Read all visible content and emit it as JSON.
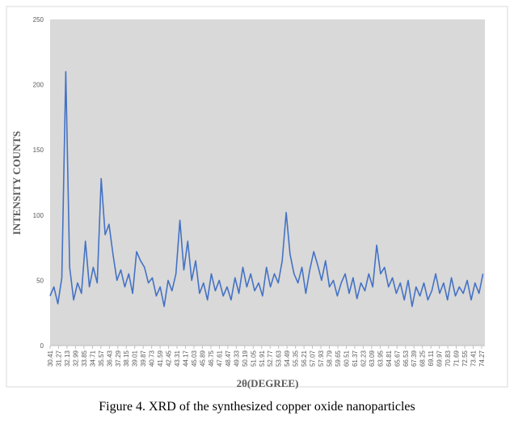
{
  "chart_data": {
    "type": "line",
    "caption": "Figure 4. XRD of the synthesized copper oxide nanoparticles",
    "xlabel": "2θ(DEGREE)",
    "ylabel": "INTENSITY COUNTS",
    "color": "#4472c4",
    "grid": false,
    "xlim": [
      30.41,
      74.6
    ],
    "ylim": [
      0,
      250
    ],
    "yticks": [
      0,
      50,
      100,
      150,
      200,
      250
    ],
    "xticks": [
      30.41,
      31.27,
      32.13,
      32.99,
      33.85,
      34.71,
      35.57,
      36.43,
      37.29,
      38.15,
      39.01,
      39.87,
      40.73,
      41.59,
      42.45,
      43.31,
      44.17,
      45.03,
      45.89,
      46.75,
      47.61,
      48.47,
      49.33,
      50.19,
      51.05,
      51.91,
      52.77,
      53.63,
      54.49,
      55.35,
      56.21,
      57.07,
      57.93,
      58.79,
      59.65,
      60.51,
      61.37,
      62.23,
      63.09,
      63.95,
      64.81,
      65.67,
      66.53,
      67.39,
      68.25,
      69.11,
      69.97,
      70.83,
      71.69,
      72.55,
      73.41,
      74.27
    ],
    "x": [
      30.4,
      30.8,
      31.2,
      31.6,
      32.0,
      32.4,
      32.8,
      33.2,
      33.6,
      34.0,
      34.4,
      34.8,
      35.2,
      35.6,
      36.0,
      36.4,
      36.8,
      37.2,
      37.6,
      38.0,
      38.4,
      38.8,
      39.2,
      39.6,
      40.0,
      40.4,
      40.8,
      41.2,
      41.6,
      42.0,
      42.4,
      42.8,
      43.2,
      43.6,
      44.0,
      44.4,
      44.8,
      45.2,
      45.6,
      46.0,
      46.4,
      46.8,
      47.2,
      47.6,
      48.0,
      48.4,
      48.8,
      49.2,
      49.6,
      50.0,
      50.4,
      50.8,
      51.2,
      51.6,
      52.0,
      52.4,
      52.8,
      53.2,
      53.6,
      54.0,
      54.4,
      54.8,
      55.2,
      55.6,
      56.0,
      56.4,
      56.8,
      57.2,
      57.6,
      58.0,
      58.4,
      58.8,
      59.2,
      59.6,
      60.0,
      60.4,
      60.8,
      61.2,
      61.6,
      62.0,
      62.4,
      62.8,
      63.2,
      63.6,
      64.0,
      64.4,
      64.8,
      65.2,
      65.6,
      66.0,
      66.4,
      66.8,
      67.2,
      67.6,
      68.0,
      68.4,
      68.8,
      69.2,
      69.6,
      70.0,
      70.4,
      70.8,
      71.2,
      71.6,
      72.0,
      72.4,
      72.8,
      73.2,
      73.6,
      74.0,
      74.4
    ],
    "values": [
      38,
      45,
      32,
      52,
      210,
      60,
      35,
      48,
      40,
      80,
      45,
      60,
      48,
      128,
      85,
      93,
      70,
      50,
      58,
      45,
      55,
      40,
      72,
      65,
      60,
      48,
      52,
      38,
      45,
      30,
      50,
      42,
      55,
      96,
      58,
      80,
      50,
      65,
      40,
      48,
      35,
      55,
      42,
      50,
      38,
      45,
      35,
      52,
      40,
      60,
      45,
      55,
      42,
      48,
      38,
      60,
      45,
      55,
      48,
      65,
      102,
      70,
      55,
      48,
      60,
      40,
      58,
      72,
      62,
      50,
      65,
      45,
      50,
      38,
      48,
      55,
      40,
      52,
      36,
      48,
      42,
      55,
      45,
      77,
      55,
      60,
      45,
      52,
      40,
      48,
      35,
      50,
      30,
      45,
      38,
      48,
      35,
      42,
      55,
      40,
      48,
      35,
      52,
      38,
      45,
      40,
      50,
      35,
      48,
      40,
      55
    ]
  }
}
